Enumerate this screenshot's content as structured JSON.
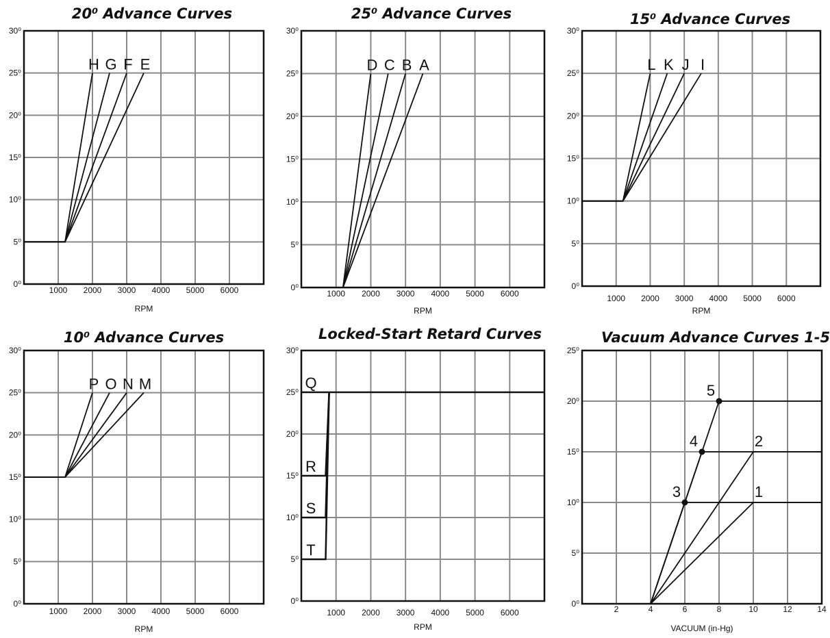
{
  "chart_data": [
    {
      "id": "adv20",
      "type": "line",
      "title": "20⁰ Advance Curves",
      "xlabel": "RPM",
      "x_ticks": [
        "1000",
        "2000",
        "3000",
        "4000",
        "5000",
        "6000"
      ],
      "y_ticks": [
        "0⁰",
        "5⁰",
        "10⁰",
        "15⁰",
        "20⁰",
        "25⁰",
        "30⁰"
      ],
      "xlim": [
        0,
        7000
      ],
      "ylim": [
        0,
        30
      ],
      "grid": true,
      "series": [
        {
          "name": "H",
          "points": [
            [
              0,
              5
            ],
            [
              1200,
              5
            ],
            [
              2000,
              25
            ]
          ]
        },
        {
          "name": "G",
          "points": [
            [
              0,
              5
            ],
            [
              1200,
              5
            ],
            [
              2500,
              25
            ]
          ]
        },
        {
          "name": "F",
          "points": [
            [
              0,
              5
            ],
            [
              1200,
              5
            ],
            [
              3000,
              25
            ]
          ]
        },
        {
          "name": "E",
          "points": [
            [
              0,
              5
            ],
            [
              1200,
              5
            ],
            [
              3500,
              25
            ]
          ]
        }
      ]
    },
    {
      "id": "adv25",
      "type": "line",
      "title": "25⁰ Advance Curves",
      "xlabel": "RPM",
      "x_ticks": [
        "1000",
        "2000",
        "3000",
        "4000",
        "5000",
        "6000"
      ],
      "y_ticks": [
        "0⁰",
        "5⁰",
        "10⁰",
        "15⁰",
        "20⁰",
        "25⁰",
        "30⁰"
      ],
      "xlim": [
        0,
        7000
      ],
      "ylim": [
        0,
        30
      ],
      "grid": true,
      "series": [
        {
          "name": "D",
          "points": [
            [
              1200,
              0
            ],
            [
              2000,
              25
            ]
          ]
        },
        {
          "name": "C",
          "points": [
            [
              1200,
              0
            ],
            [
              2500,
              25
            ]
          ]
        },
        {
          "name": "B",
          "points": [
            [
              1200,
              0
            ],
            [
              3000,
              25
            ]
          ]
        },
        {
          "name": "A",
          "points": [
            [
              1200,
              0
            ],
            [
              3500,
              25
            ]
          ]
        }
      ]
    },
    {
      "id": "adv15",
      "type": "line",
      "title": "15⁰ Advance Curves",
      "xlabel": "RPM",
      "x_ticks": [
        "1000",
        "2000",
        "3000",
        "4000",
        "5000",
        "6000"
      ],
      "y_ticks": [
        "0⁰",
        "5⁰",
        "10⁰",
        "15⁰",
        "20⁰",
        "25⁰",
        "30⁰"
      ],
      "xlim": [
        0,
        7000
      ],
      "ylim": [
        0,
        30
      ],
      "grid": true,
      "series": [
        {
          "name": "L",
          "points": [
            [
              0,
              10
            ],
            [
              1200,
              10
            ],
            [
              2000,
              25
            ]
          ]
        },
        {
          "name": "K",
          "points": [
            [
              0,
              10
            ],
            [
              1200,
              10
            ],
            [
              2500,
              25
            ]
          ]
        },
        {
          "name": "J",
          "points": [
            [
              0,
              10
            ],
            [
              1200,
              10
            ],
            [
              3000,
              25
            ]
          ]
        },
        {
          "name": "I",
          "points": [
            [
              0,
              10
            ],
            [
              1200,
              10
            ],
            [
              3500,
              25
            ]
          ]
        }
      ]
    },
    {
      "id": "adv10",
      "type": "line",
      "title": "10⁰ Advance Curves",
      "xlabel": "RPM",
      "x_ticks": [
        "1000",
        "2000",
        "3000",
        "4000",
        "5000",
        "6000"
      ],
      "y_ticks": [
        "0⁰",
        "5⁰",
        "10⁰",
        "15⁰",
        "20⁰",
        "25⁰",
        "30⁰"
      ],
      "xlim": [
        0,
        7000
      ],
      "ylim": [
        0,
        30
      ],
      "grid": true,
      "series": [
        {
          "name": "P",
          "points": [
            [
              0,
              15
            ],
            [
              1200,
              15
            ],
            [
              2000,
              25
            ]
          ]
        },
        {
          "name": "O",
          "points": [
            [
              0,
              15
            ],
            [
              1200,
              15
            ],
            [
              2500,
              25
            ]
          ]
        },
        {
          "name": "N",
          "points": [
            [
              0,
              15
            ],
            [
              1200,
              15
            ],
            [
              3000,
              25
            ]
          ]
        },
        {
          "name": "M",
          "points": [
            [
              0,
              15
            ],
            [
              1200,
              15
            ],
            [
              3500,
              25
            ]
          ]
        }
      ]
    },
    {
      "id": "retard",
      "type": "line",
      "title": "Locked-Start Retard Curves",
      "xlabel": "RPM",
      "x_ticks": [
        "1000",
        "2000",
        "3000",
        "4000",
        "5000",
        "6000"
      ],
      "y_ticks": [
        "0⁰",
        "5⁰",
        "10⁰",
        "15⁰",
        "20⁰",
        "25⁰",
        "30⁰"
      ],
      "xlim": [
        0,
        7000
      ],
      "ylim": [
        0,
        30
      ],
      "grid": true,
      "series": [
        {
          "name": "Q",
          "points": [
            [
              0,
              25
            ],
            [
              7000,
              25
            ]
          ],
          "label_at": [
            0,
            25
          ]
        },
        {
          "name": "R",
          "points": [
            [
              0,
              15
            ],
            [
              700,
              15
            ],
            [
              800,
              25
            ]
          ],
          "label_at": [
            0,
            15
          ]
        },
        {
          "name": "S",
          "points": [
            [
              0,
              10
            ],
            [
              700,
              10
            ],
            [
              800,
              25
            ]
          ],
          "label_at": [
            0,
            10
          ]
        },
        {
          "name": "T",
          "points": [
            [
              0,
              5
            ],
            [
              700,
              5
            ],
            [
              800,
              25
            ]
          ],
          "label_at": [
            0,
            5
          ]
        }
      ]
    },
    {
      "id": "vacuum",
      "type": "line",
      "title": "Vacuum Advance Curves 1-5",
      "xlabel": "VACUUM (in-Hg)",
      "x_ticks": [
        "2",
        "4",
        "6",
        "8",
        "10",
        "12",
        "14"
      ],
      "y_ticks": [
        "0⁰",
        "5⁰",
        "10⁰",
        "15⁰",
        "20⁰",
        "25⁰"
      ],
      "xlim": [
        0,
        14
      ],
      "ylim": [
        0,
        25
      ],
      "grid": true,
      "series": [
        {
          "name": "1",
          "points": [
            [
              4,
              0
            ],
            [
              10,
              10
            ],
            [
              14,
              10
            ]
          ]
        },
        {
          "name": "2",
          "points": [
            [
              4,
              0
            ],
            [
              10,
              15
            ],
            [
              14,
              15
            ]
          ]
        },
        {
          "name": "3",
          "points": [
            [
              4,
              0
            ],
            [
              6,
              10
            ],
            [
              14,
              10
            ]
          ]
        },
        {
          "name": "4",
          "points": [
            [
              4,
              0
            ],
            [
              7,
              15
            ],
            [
              14,
              15
            ]
          ]
        },
        {
          "name": "5",
          "points": [
            [
              4,
              0
            ],
            [
              8,
              20
            ],
            [
              14,
              20
            ]
          ]
        }
      ]
    }
  ]
}
